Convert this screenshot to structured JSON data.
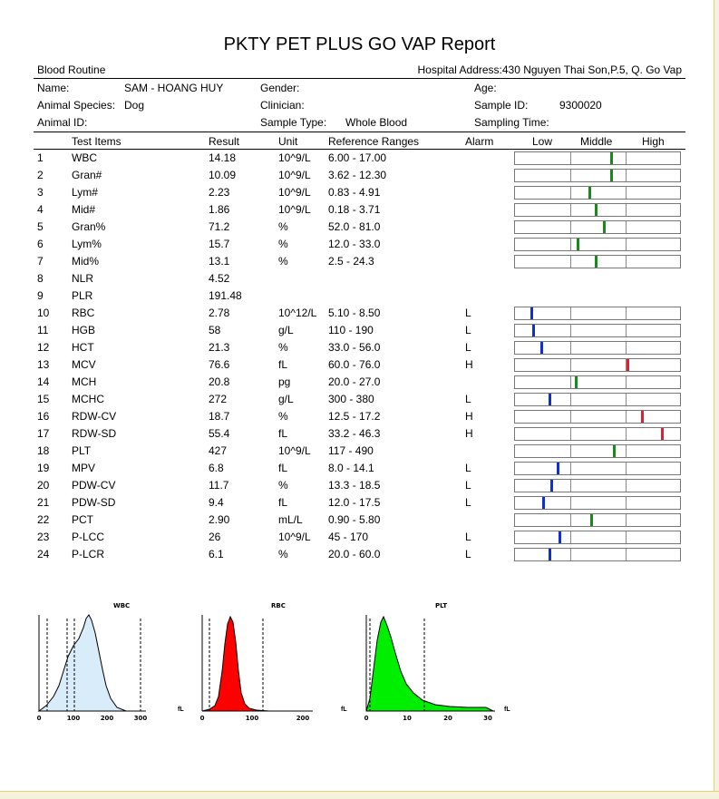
{
  "report": {
    "title": "PKTY PET PLUS GO VAP Report",
    "section": "Blood Routine",
    "hospital_address": "Hospital Address:430 Nguyen Thai Son,P.5, Q. Go Vap"
  },
  "patient": {
    "name_label": "Name:",
    "name_value": "SAM - HOANG HUY",
    "gender_label": "Gender:",
    "age_label": "Age:",
    "species_label": "Animal Species:",
    "species_value": "Dog",
    "clinician_label": "Clinician:",
    "sample_id_label": "Sample ID:",
    "sample_id_value": "9300020",
    "animal_id_label": "Animal ID:",
    "sample_type_label": "Sample Type:",
    "sample_type_value": "Whole Blood",
    "sampling_time_label": "Sampling Time:"
  },
  "columns": {
    "test_items": "Test Items",
    "result": "Result",
    "unit": "Unit",
    "reference": "Reference Ranges",
    "alarm": "Alarm",
    "low": "Low",
    "middle": "Middle",
    "high": "High"
  },
  "colors": {
    "normal": "#1a8a1a",
    "low": "#1030d0",
    "high": "#e02030"
  },
  "rows": [
    {
      "no": "1",
      "item": "WBC",
      "result": "14.18",
      "unit": "10^9/L",
      "ref": "6.00 - 17.00",
      "alarm": "",
      "level": 0.58,
      "status": "normal"
    },
    {
      "no": "2",
      "item": "Gran#",
      "result": "10.09",
      "unit": "10^9/L",
      "ref": "3.62 - 12.30",
      "alarm": "",
      "level": 0.58,
      "status": "normal"
    },
    {
      "no": "3",
      "item": "Lym#",
      "result": "2.23",
      "unit": "10^9/L",
      "ref": "0.83 - 4.91",
      "alarm": "",
      "level": 0.45,
      "status": "normal"
    },
    {
      "no": "4",
      "item": "Mid#",
      "result": "1.86",
      "unit": "10^9/L",
      "ref": "0.18 - 3.71",
      "alarm": "",
      "level": 0.49,
      "status": "normal"
    },
    {
      "no": "5",
      "item": "Gran%",
      "result": "71.2",
      "unit": "%",
      "ref": "52.0 - 81.0",
      "alarm": "",
      "level": 0.54,
      "status": "normal"
    },
    {
      "no": "6",
      "item": "Lym%",
      "result": "15.7",
      "unit": "%",
      "ref": "12.0 - 33.0",
      "alarm": "",
      "level": 0.38,
      "status": "normal"
    },
    {
      "no": "7",
      "item": "Mid%",
      "result": "13.1",
      "unit": "%",
      "ref": "2.5 - 24.3",
      "alarm": "",
      "level": 0.49,
      "status": "normal"
    },
    {
      "no": "8",
      "item": "NLR",
      "result": "4.52",
      "unit": "",
      "ref": "",
      "alarm": "",
      "level": null,
      "status": ""
    },
    {
      "no": "9",
      "item": "PLR",
      "result": "191.48",
      "unit": "",
      "ref": "",
      "alarm": "",
      "level": null,
      "status": ""
    },
    {
      "no": "10",
      "item": "RBC",
      "result": "2.78",
      "unit": "10^12/L",
      "ref": "5.10 - 8.50",
      "alarm": "L",
      "level": 0.1,
      "status": "low"
    },
    {
      "no": "11",
      "item": "HGB",
      "result": "58",
      "unit": "g/L",
      "ref": "110 - 190",
      "alarm": "L",
      "level": 0.11,
      "status": "low"
    },
    {
      "no": "12",
      "item": "HCT",
      "result": "21.3",
      "unit": "%",
      "ref": "33.0 - 56.0",
      "alarm": "L",
      "level": 0.16,
      "status": "low"
    },
    {
      "no": "13",
      "item": "MCV",
      "result": "76.6",
      "unit": "fL",
      "ref": "60.0 - 76.0",
      "alarm": "H",
      "level": 0.68,
      "status": "high"
    },
    {
      "no": "14",
      "item": "MCH",
      "result": "20.8",
      "unit": "pg",
      "ref": "20.0 - 27.0",
      "alarm": "",
      "level": 0.37,
      "status": "normal"
    },
    {
      "no": "15",
      "item": "MCHC",
      "result": "272",
      "unit": "g/L",
      "ref": "300 - 380",
      "alarm": "L",
      "level": 0.21,
      "status": "low"
    },
    {
      "no": "16",
      "item": "RDW-CV",
      "result": "18.7",
      "unit": "%",
      "ref": "12.5 - 17.2",
      "alarm": "H",
      "level": 0.77,
      "status": "high"
    },
    {
      "no": "17",
      "item": "RDW-SD",
      "result": "55.4",
      "unit": "fL",
      "ref": "33.2 - 46.3",
      "alarm": "H",
      "level": 0.89,
      "status": "high"
    },
    {
      "no": "18",
      "item": "PLT",
      "result": "427",
      "unit": "10^9/L",
      "ref": "117 - 490",
      "alarm": "",
      "level": 0.6,
      "status": "normal"
    },
    {
      "no": "19",
      "item": "MPV",
      "result": "6.8",
      "unit": "fL",
      "ref": "8.0 - 14.1",
      "alarm": "L",
      "level": 0.26,
      "status": "low"
    },
    {
      "no": "20",
      "item": "PDW-CV",
      "result": "11.7",
      "unit": "%",
      "ref": "13.3 - 18.5",
      "alarm": "L",
      "level": 0.22,
      "status": "low"
    },
    {
      "no": "21",
      "item": "PDW-SD",
      "result": "9.4",
      "unit": "fL",
      "ref": "12.0 - 17.5",
      "alarm": "L",
      "level": 0.17,
      "status": "low"
    },
    {
      "no": "22",
      "item": "PCT",
      "result": "2.90",
      "unit": "mL/L",
      "ref": "0.90 - 5.80",
      "alarm": "",
      "level": 0.46,
      "status": "normal"
    },
    {
      "no": "23",
      "item": "P-LCC",
      "result": "26",
      "unit": "10^9/L",
      "ref": "45 - 170",
      "alarm": "L",
      "level": 0.27,
      "status": "low"
    },
    {
      "no": "24",
      "item": "P-LCR",
      "result": "6.1",
      "unit": "%",
      "ref": "20.0 - 60.0",
      "alarm": "L",
      "level": 0.21,
      "status": "low"
    }
  ],
  "histograms": [
    {
      "name": "WBC",
      "fill": "#d8ecfa",
      "ticks": [
        "0",
        "100",
        "200",
        "300"
      ],
      "unit": "fL"
    },
    {
      "name": "RBC",
      "fill": "#ff0000",
      "ticks": [
        "0",
        "100",
        "200"
      ],
      "unit": "fL"
    },
    {
      "name": "PLT",
      "fill": "#00ee00",
      "ticks": [
        "0",
        "10",
        "20",
        "30"
      ],
      "unit": "fL"
    }
  ]
}
